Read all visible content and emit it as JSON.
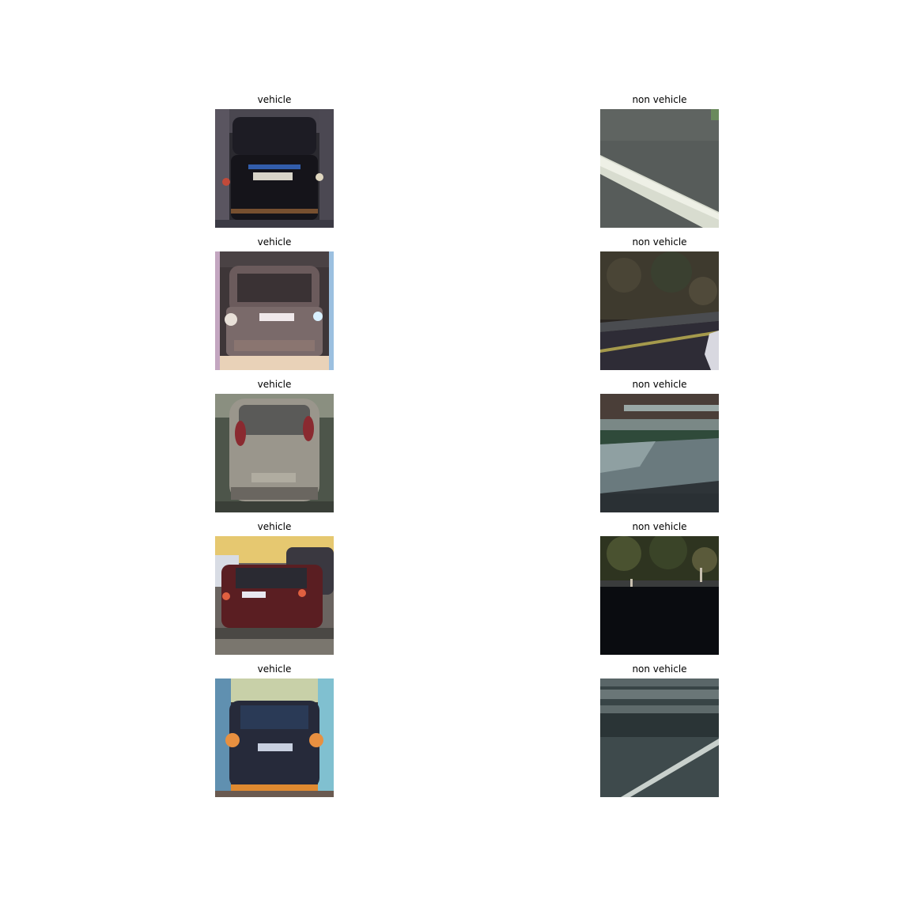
{
  "figure": {
    "panels": [
      {
        "title": "vehicle"
      },
      {
        "title": "non vehicle"
      },
      {
        "title": "vehicle"
      },
      {
        "title": "non vehicle"
      },
      {
        "title": "vehicle"
      },
      {
        "title": "non vehicle"
      },
      {
        "title": "vehicle"
      },
      {
        "title": "non vehicle"
      },
      {
        "title": "vehicle"
      },
      {
        "title": "non vehicle"
      }
    ]
  }
}
